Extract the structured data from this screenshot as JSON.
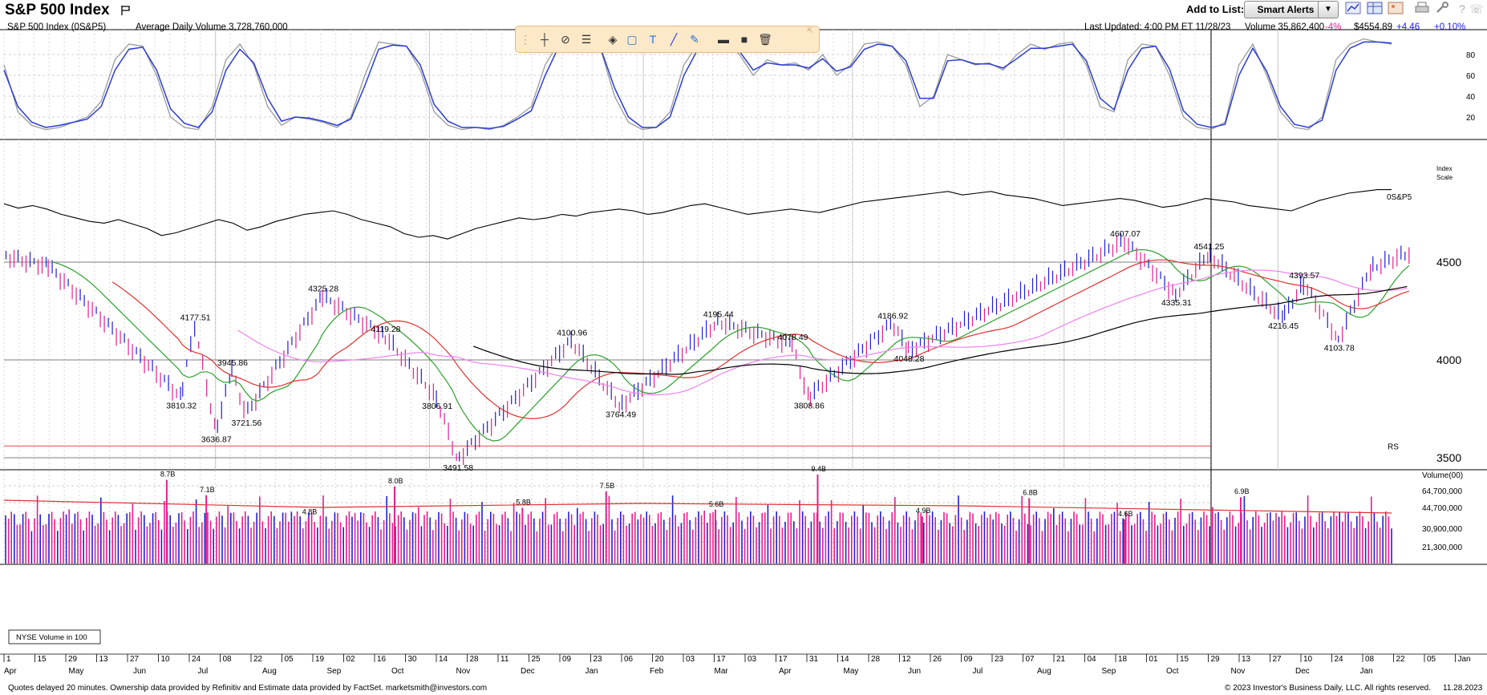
{
  "header": {
    "title": "S&P 500 Index",
    "add_to_list": "Add to List:",
    "smart_alerts": "Smart Alerts",
    "dropdown_arrow": "▼",
    "icons": [
      "line-chart-icon",
      "table-icon",
      "image-icon",
      "print-icon",
      "wrench-icon",
      "help-icon",
      "phone-icon"
    ]
  },
  "info": {
    "symbol": "S&P 500 Index   (0S&P5)",
    "avg_volume": "Average Daily Volume 3,728,760,000",
    "last_updated": "Last Updated: 4:00 PM ET 11/28/23",
    "volume": "Volume 35,862,400",
    "volume_pct": "-4%",
    "price": "$4554.89",
    "change": "+4.46",
    "change_pct": "+0.10%",
    "colors": {
      "negative": "#e0218a",
      "positive": "#1a1aff"
    }
  },
  "footer": {
    "left": "Quotes delayed 20 minutes. Ownership data provided by Refinitiv and Estimate data provided by FactSet. marketsmith@investors.com",
    "right": "© 2023 Investor's Business Daily, LLC. All rights reserved.",
    "date": "11.28.2023"
  },
  "chart_data": {
    "type": "line",
    "colors": {
      "up": "#1f1fd1",
      "down": "#e0218a",
      "ma10": "#2ca02c",
      "ma21": "#e03030",
      "ma50": "#ee82ee",
      "ma200": "#000000",
      "rs": "#000000",
      "stoch_k": "#9a9a9a",
      "stoch_d": "#2a3cd6"
    },
    "stochastic": {
      "ticks": [
        "80",
        "60",
        "40",
        "20"
      ],
      "k_values": [
        70,
        25,
        12,
        8,
        10,
        15,
        20,
        35,
        75,
        90,
        88,
        60,
        20,
        10,
        8,
        30,
        75,
        90,
        70,
        30,
        12,
        20,
        18,
        15,
        10,
        20,
        60,
        92,
        90,
        88,
        65,
        25,
        12,
        8,
        10,
        8,
        12,
        20,
        30,
        70,
        92,
        95,
        90,
        85,
        40,
        15,
        8,
        10,
        25,
        70,
        90,
        95,
        92,
        80,
        60,
        75,
        70,
        72,
        65,
        80,
        60,
        70,
        90,
        92,
        88,
        70,
        30,
        40,
        80,
        75,
        70,
        72,
        65,
        80,
        90,
        85,
        90,
        92,
        70,
        30,
        25,
        75,
        90,
        88,
        60,
        20,
        10,
        8,
        15,
        70,
        90,
        60,
        25,
        10,
        8,
        20,
        75,
        90,
        95,
        92,
        90
      ],
      "d_values": [
        65,
        30,
        15,
        10,
        12,
        15,
        18,
        30,
        65,
        85,
        87,
        65,
        28,
        14,
        10,
        25,
        65,
        85,
        72,
        38,
        16,
        20,
        19,
        16,
        12,
        18,
        50,
        85,
        89,
        88,
        70,
        32,
        16,
        10,
        10,
        9,
        11,
        18,
        26,
        60,
        88,
        93,
        90,
        86,
        48,
        20,
        10,
        10,
        20,
        60,
        85,
        92,
        92,
        83,
        65,
        72,
        70,
        70,
        67,
        76,
        64,
        68,
        85,
        90,
        88,
        74,
        38,
        38,
        74,
        75,
        71,
        71,
        67,
        76,
        86,
        86,
        88,
        90,
        74,
        38,
        27,
        65,
        86,
        88,
        66,
        26,
        13,
        10,
        13,
        60,
        86,
        64,
        30,
        13,
        10,
        17,
        65,
        86,
        92,
        92,
        91
      ]
    },
    "price_axis": {
      "ticks": [
        "4500",
        "4000",
        "3500"
      ],
      "scale_label": "Index\nScale"
    },
    "pivot_labels": [
      {
        "text": "4177.51",
        "x": "2022-06-22",
        "y": 4177.51
      },
      {
        "text": "3810.32",
        "x": "2022-06-16",
        "y": 3810.32
      },
      {
        "text": "3945.86",
        "x": "2022-07-08",
        "y": 3945.86
      },
      {
        "text": "3636.87",
        "x": "2022-07-01",
        "y": 3636.87
      },
      {
        "text": "3721.56",
        "x": "2022-07-14",
        "y": 3721.56
      },
      {
        "text": "4325.28",
        "x": "2022-08-16",
        "y": 4325.28
      },
      {
        "text": "4119.28",
        "x": "2022-09-12",
        "y": 4119.28
      },
      {
        "text": "3806.91",
        "x": "2022-10-04",
        "y": 3806.91
      },
      {
        "text": "3491.58",
        "x": "2022-10-13",
        "y": 3491.58
      },
      {
        "text": "4100.96",
        "x": "2022-12-01",
        "y": 4100.96
      },
      {
        "text": "3764.49",
        "x": "2022-12-22",
        "y": 3764.49
      },
      {
        "text": "4195.44",
        "x": "2023-02-02",
        "y": 4195.44
      },
      {
        "text": "4078.49",
        "x": "2023-03-06",
        "y": 4078.49
      },
      {
        "text": "3808.86",
        "x": "2023-03-13",
        "y": 3808.86
      },
      {
        "text": "4186.92",
        "x": "2023-04-18",
        "y": 4186.92
      },
      {
        "text": "4048.28",
        "x": "2023-04-25",
        "y": 4048.28
      },
      {
        "text": "4607.07",
        "x": "2023-07-27",
        "y": 4607.07
      },
      {
        "text": "4335.31",
        "x": "2023-08-18",
        "y": 4335.31
      },
      {
        "text": "4541.25",
        "x": "2023-09-01",
        "y": 4541.25
      },
      {
        "text": "4216.45",
        "x": "2023-10-03",
        "y": 4216.45
      },
      {
        "text": "4393.57",
        "x": "2023-10-12",
        "y": 4393.57
      },
      {
        "text": "4103.78",
        "x": "2023-10-27",
        "y": 4103.78
      }
    ],
    "series": [
      {
        "name": "0S&P5",
        "values": [
          78,
          73,
          76,
          72,
          66,
          62,
          58,
          56,
          60,
          55,
          50,
          42,
          45,
          50,
          55,
          60,
          56,
          48,
          52,
          58,
          62,
          66,
          68,
          70,
          66,
          60,
          56,
          52,
          44,
          40,
          42,
          38,
          44,
          50,
          54,
          58,
          62,
          60,
          62,
          66,
          64,
          68,
          70,
          72,
          70,
          66,
          68,
          72,
          76,
          78,
          74,
          70,
          66,
          68,
          70,
          72,
          70,
          68,
          72,
          76,
          80,
          82,
          84,
          86,
          88,
          90,
          92,
          88,
          90,
          92,
          88,
          86,
          84,
          80,
          76,
          78,
          80,
          82,
          84,
          82,
          78,
          74,
          76,
          80,
          84,
          82,
          80,
          76,
          74,
          72,
          70,
          76,
          82,
          86,
          90,
          92,
          94,
          94
        ]
      },
      {
        "name": "RS",
        "values": [
          3560
        ]
      }
    ],
    "ma_labels": [],
    "volume": {
      "axis_label": "Volume(00)",
      "ticks": [
        "64,700,000",
        "44,700,000",
        "30,900,000",
        "21,300,000"
      ],
      "legend": "NYSE Volume in 100",
      "labels": [
        {
          "text": "7.1B",
          "x": "2022-06-27",
          "y": 7.1
        },
        {
          "text": "8.7B",
          "x": "2022-06-10",
          "y": 8.7
        },
        {
          "text": "4.8B",
          "x": "2022-08-10",
          "y": 4.8
        },
        {
          "text": "8.0B",
          "x": "2022-09-16",
          "y": 8.0
        },
        {
          "text": "5.8B",
          "x": "2022-11-10",
          "y": 5.8
        },
        {
          "text": "7.5B",
          "x": "2022-12-16",
          "y": 7.5
        },
        {
          "text": "5.6B",
          "x": "2023-02-01",
          "y": 5.6
        },
        {
          "text": "9.4B",
          "x": "2023-03-17",
          "y": 9.4
        },
        {
          "text": "4.9B",
          "x": "2023-05-01",
          "y": 4.9
        },
        {
          "text": "6.8B",
          "x": "2023-06-16",
          "y": 6.8
        },
        {
          "text": "4.6B",
          "x": "2023-07-27",
          "y": 4.6
        },
        {
          "text": "6.9B",
          "x": "2023-09-15",
          "y": 6.9
        }
      ]
    },
    "x_ticks_days": [
      "1",
      "15",
      "29",
      "13",
      "27",
      "10",
      "24",
      "08",
      "22",
      "05",
      "19",
      "02",
      "16",
      "30",
      "14",
      "28",
      "11",
      "25",
      "09",
      "23",
      "06",
      "20",
      "03",
      "17",
      "03",
      "17",
      "31",
      "14",
      "28",
      "12",
      "26",
      "09",
      "23",
      "07",
      "21",
      "04",
      "18",
      "01",
      "15",
      "29",
      "13",
      "27",
      "10",
      "24",
      "08",
      "22",
      "05",
      "Jan"
    ],
    "x_ticks_months": [
      "Apr",
      "May",
      "Jun",
      "Jul",
      "Aug",
      "Sep",
      "Oct",
      "Nov",
      "Dec",
      "Jan",
      "Feb",
      "Mar",
      "Apr",
      "May",
      "Jun",
      "Jul",
      "Aug",
      "Sep",
      "Oct",
      "Nov",
      "Dec",
      "Jan"
    ]
  }
}
